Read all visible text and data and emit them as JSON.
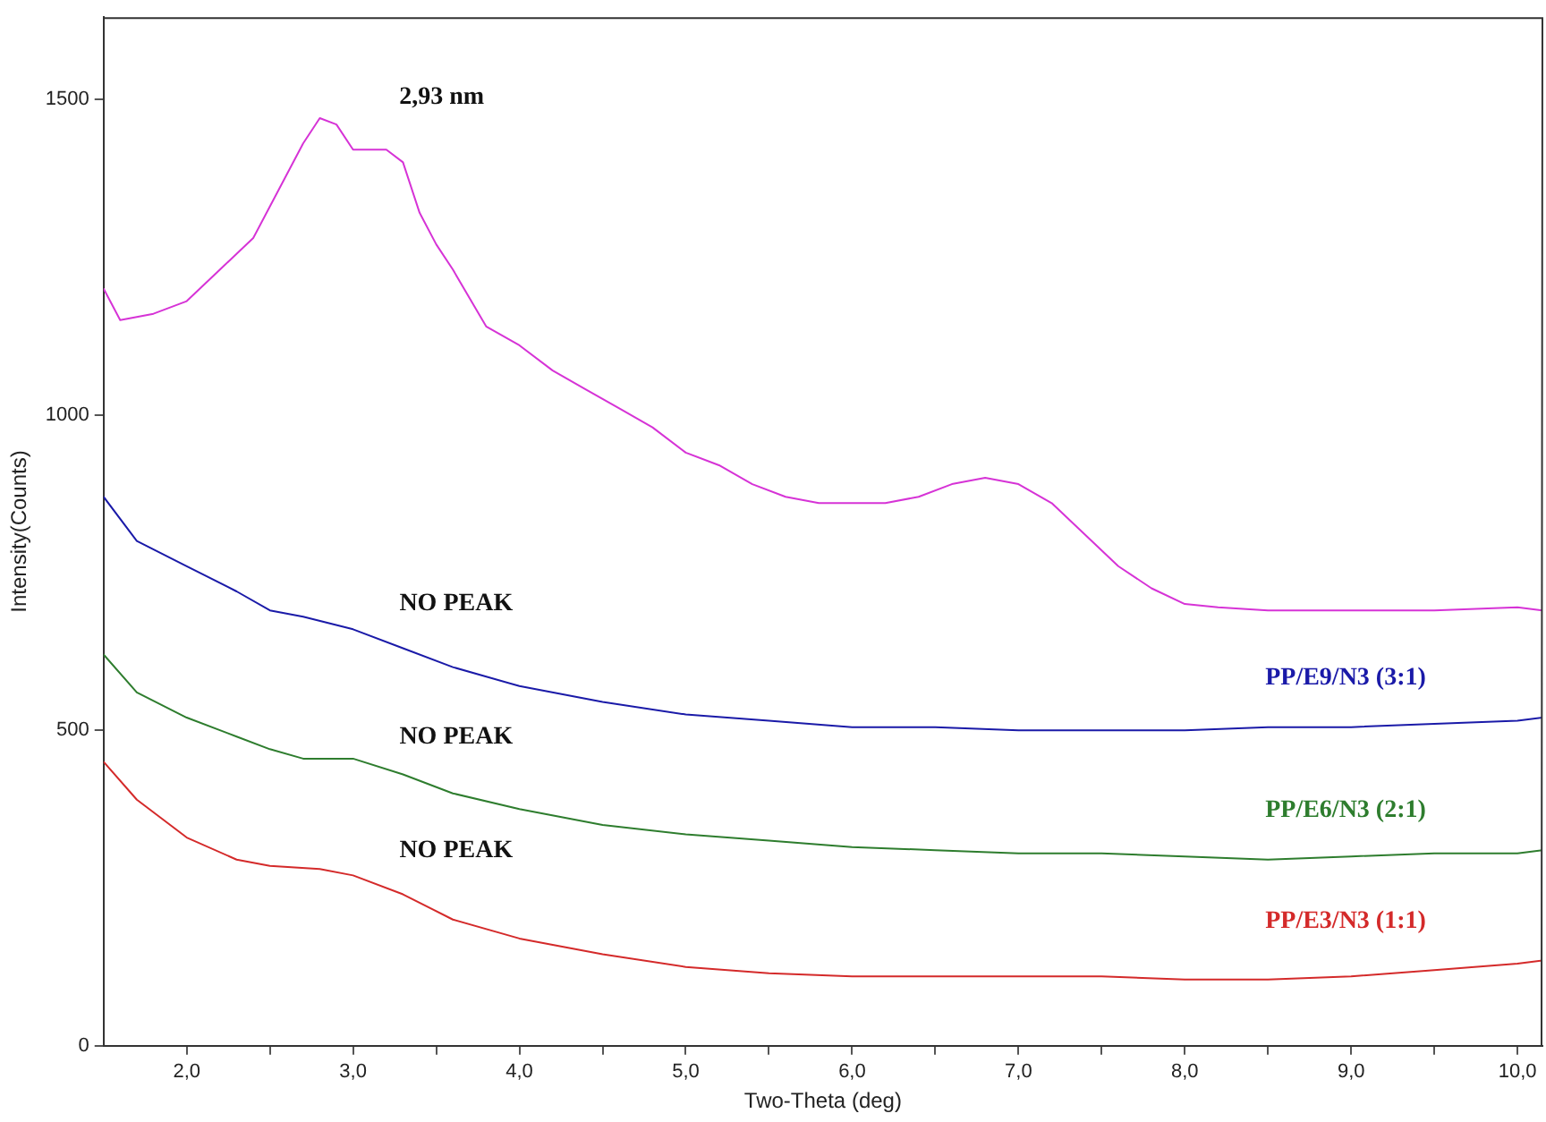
{
  "chart_data": {
    "type": "line",
    "xlabel": "Two-Theta (deg)",
    "ylabel": "Intensity(Counts)",
    "xlim": [
      1.5,
      10.15
    ],
    "ylim": [
      0,
      1630
    ],
    "xticks": [
      {
        "value": 2,
        "label": "2,0"
      },
      {
        "value": 2.5,
        "label": null
      },
      {
        "value": 3,
        "label": "3,0"
      },
      {
        "value": 3.5,
        "label": null
      },
      {
        "value": 4,
        "label": "4,0"
      },
      {
        "value": 4.5,
        "label": null
      },
      {
        "value": 5,
        "label": "5,0"
      },
      {
        "value": 5.5,
        "label": null
      },
      {
        "value": 6,
        "label": "6,0"
      },
      {
        "value": 6.5,
        "label": null
      },
      {
        "value": 7,
        "label": "7,0"
      },
      {
        "value": 7.5,
        "label": null
      },
      {
        "value": 8,
        "label": "8,0"
      },
      {
        "value": 8.5,
        "label": null
      },
      {
        "value": 9,
        "label": "9,0"
      },
      {
        "value": 9.5,
        "label": null
      },
      {
        "value": 10,
        "label": "10,0"
      }
    ],
    "yticks": [
      0,
      500,
      1000,
      1500
    ],
    "grid": false,
    "legend": false,
    "marker": "none",
    "line_style": "solid",
    "annotations": [
      "2,93 nm",
      "NO PEAK",
      "NO PEAK",
      "NO PEAK"
    ],
    "series": [
      {
        "color": "#d633d6",
        "x": [
          1.5,
          1.6,
          1.8,
          2.0,
          2.2,
          2.4,
          2.5,
          2.6,
          2.7,
          2.8,
          2.9,
          3.0,
          3.2,
          3.3,
          3.4,
          3.5,
          3.6,
          3.8,
          4.0,
          4.2,
          4.4,
          4.6,
          4.8,
          5.0,
          5.2,
          5.4,
          5.6,
          5.8,
          6.0,
          6.2,
          6.4,
          6.6,
          6.8,
          7.0,
          7.2,
          7.4,
          7.6,
          7.8,
          8.0,
          8.2,
          8.5,
          9.0,
          9.5,
          10.0,
          10.15
        ],
        "values": [
          1200,
          1150,
          1160,
          1180,
          1230,
          1280,
          1330,
          1380,
          1430,
          1470,
          1460,
          1420,
          1420,
          1400,
          1320,
          1270,
          1230,
          1140,
          1110,
          1070,
          1040,
          1010,
          980,
          940,
          920,
          890,
          870,
          860,
          860,
          860,
          870,
          890,
          900,
          890,
          860,
          810,
          760,
          725,
          700,
          695,
          690,
          690,
          690,
          695,
          690
        ]
      },
      {
        "name": "PP/E9/N3 (3:1)",
        "color": "#1a1aa8",
        "x": [
          1.5,
          1.7,
          2.0,
          2.3,
          2.5,
          2.7,
          3.0,
          3.3,
          3.6,
          4.0,
          4.5,
          5.0,
          5.5,
          6.0,
          6.5,
          7.0,
          7.5,
          8.0,
          8.5,
          9.0,
          9.5,
          10.0,
          10.15
        ],
        "values": [
          870,
          800,
          760,
          720,
          690,
          680,
          660,
          630,
          600,
          570,
          545,
          525,
          515,
          505,
          505,
          500,
          500,
          500,
          505,
          505,
          510,
          515,
          520
        ]
      },
      {
        "name": "PP/E6/N3 (2:1)",
        "color": "#2e7d2e",
        "x": [
          1.5,
          1.7,
          2.0,
          2.3,
          2.5,
          2.7,
          3.0,
          3.3,
          3.6,
          4.0,
          4.5,
          5.0,
          5.5,
          6.0,
          6.5,
          7.0,
          7.5,
          8.0,
          8.5,
          9.0,
          9.5,
          10.0,
          10.15
        ],
        "values": [
          620,
          560,
          520,
          490,
          470,
          455,
          455,
          430,
          400,
          375,
          350,
          335,
          325,
          315,
          310,
          305,
          305,
          300,
          295,
          300,
          305,
          305,
          310
        ]
      },
      {
        "name": "PP/E3/N3 (1:1)",
        "color": "#d42a2a",
        "x": [
          1.5,
          1.7,
          2.0,
          2.3,
          2.5,
          2.8,
          3.0,
          3.3,
          3.6,
          4.0,
          4.5,
          5.0,
          5.5,
          6.0,
          6.5,
          7.0,
          7.5,
          8.0,
          8.5,
          9.0,
          9.5,
          10.0,
          10.15
        ],
        "values": [
          450,
          390,
          330,
          295,
          285,
          280,
          270,
          240,
          200,
          170,
          145,
          125,
          115,
          110,
          110,
          110,
          110,
          105,
          105,
          110,
          120,
          130,
          135
        ]
      }
    ]
  }
}
